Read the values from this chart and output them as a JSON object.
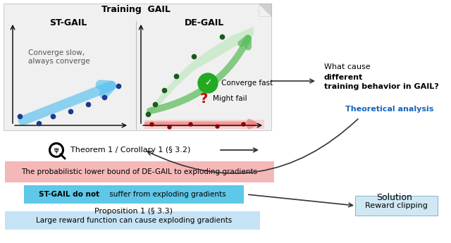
{
  "bg_color": "#ffffff",
  "training_title": "Training  GAIL",
  "st_gail_title": "ST-GAIL",
  "de_gail_title": "DE-GAIL",
  "st_text": "Converge slow,\nalways converge",
  "converge_fast_text": "Converge fast",
  "might_fail_text": "Might fail",
  "right_question_prefix": "What cause ",
  "right_question_bold": "different\ntraining behavior in GAIL?",
  "theoretical_analysis": "Theoretical analysis",
  "theorem_text": "Theorem 1 / Corollary 1 (§ 3.2)",
  "pink_box_text": "The probabilistic lower bound of DE-GAIL to exploding gradients",
  "blue_box_text_bold": "ST-GAIL do not",
  "blue_box_text_normal": " suffer from exploding gradients",
  "proposition_text": "Proposition 1 (§ 3.3)",
  "light_blue_box_text": "Large reward function can cause exploding gradients",
  "solution_text": "Solution",
  "reward_clipping_text": "Reward clipping",
  "pink_box_color": "#f5b8b8",
  "blue_box_color": "#5ec8e8",
  "light_blue_box_color": "#c5e3f5",
  "reward_box_color": "#d0e8f4",
  "theoretical_analysis_color": "#1565c0"
}
